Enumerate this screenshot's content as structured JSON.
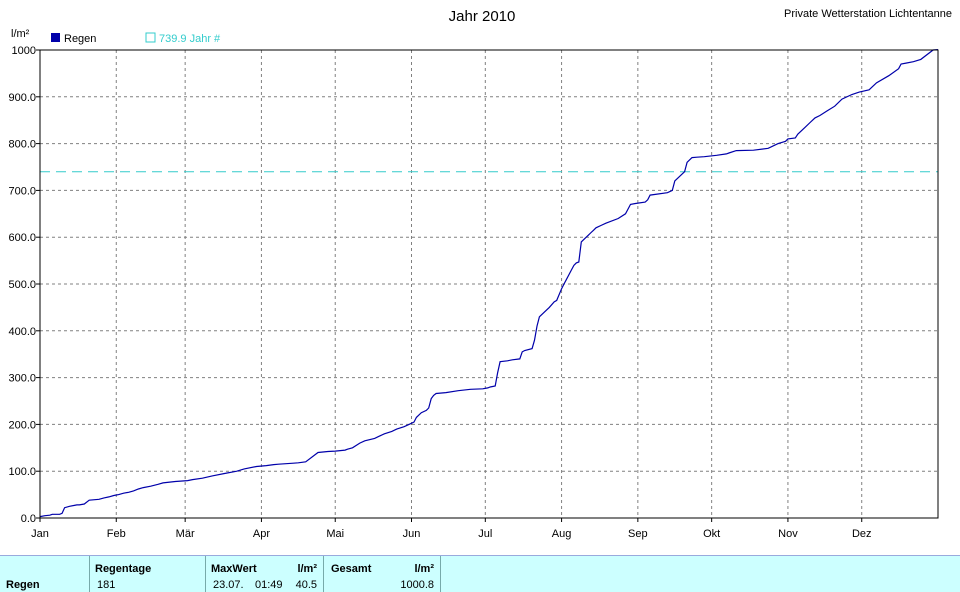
{
  "header": {
    "title": "Jahr 2010",
    "station": "Private Wetterstation Lichtentanne"
  },
  "colors": {
    "series": "#0000aa",
    "reference": "#33cccc",
    "grid": "#808080",
    "stats_bg": "#ccffff"
  },
  "chart_data": {
    "type": "line",
    "title": "Jahr 2010",
    "ylabel": "l/m²",
    "ylim": [
      0,
      1000
    ],
    "yticks": [
      "0.0",
      "100.0",
      "200.0",
      "300.0",
      "400.0",
      "500.0",
      "600.0",
      "700.0",
      "800.0",
      "900.0",
      "1000"
    ],
    "xticks": [
      "Jan",
      "Feb",
      "Mär",
      "Apr",
      "Mai",
      "Jun",
      "Jul",
      "Aug",
      "Sep",
      "Okt",
      "Nov",
      "Dez"
    ],
    "legend": [
      {
        "label": "Regen",
        "swatch": "filled"
      },
      {
        "label": "739.9 Jahr #",
        "swatch": "outline"
      }
    ],
    "reference_line": 739.9,
    "series": [
      {
        "name": "Regen",
        "x_day": [
          0,
          2,
          4,
          5,
          6,
          8,
          9,
          10,
          12,
          14,
          15,
          16,
          18,
          20,
          24,
          26,
          28,
          30,
          32,
          34,
          36,
          38,
          40,
          42,
          45,
          48,
          50,
          55,
          60,
          62,
          66,
          70,
          75,
          80,
          83,
          88,
          92,
          95,
          97,
          100,
          103,
          105,
          108,
          113,
          117,
          120,
          122,
          124,
          125,
          127,
          130,
          132,
          136,
          138,
          140,
          143,
          145,
          148,
          150,
          152,
          153,
          155,
          157,
          158,
          159,
          160,
          161,
          165,
          170,
          175,
          180,
          182,
          183,
          185,
          186,
          187,
          190,
          192,
          195,
          196,
          197,
          200,
          201,
          202,
          203,
          205,
          207,
          209,
          210,
          212,
          213,
          214,
          216,
          217,
          218,
          219,
          220,
          222,
          223,
          224,
          225,
          226,
          228,
          230,
          235,
          238,
          239,
          240,
          242,
          246,
          247,
          248,
          255,
          257,
          258,
          262,
          263,
          265,
          267,
          270,
          275,
          279,
          280,
          283,
          290,
          296,
          300,
          303,
          304,
          307,
          308,
          310,
          313,
          315,
          317,
          320,
          323,
          326,
          330,
          333,
          337,
          340,
          345,
          349,
          350,
          352,
          355,
          358,
          363,
          365
        ],
        "values": [
          3,
          5,
          6,
          8,
          8,
          8,
          10,
          22,
          25,
          27,
          28,
          28,
          30,
          38,
          40,
          43,
          45,
          48,
          50,
          53,
          55,
          58,
          62,
          65,
          68,
          72,
          75,
          78,
          80,
          82,
          85,
          90,
          95,
          100,
          105,
          110,
          112,
          114,
          115,
          116,
          117,
          118,
          120,
          140,
          142,
          143,
          144,
          145,
          147,
          150,
          160,
          165,
          170,
          175,
          180,
          185,
          190,
          195,
          200,
          205,
          215,
          225,
          230,
          235,
          255,
          262,
          266,
          268,
          272,
          275,
          276,
          278,
          280,
          282,
          310,
          334,
          336,
          338,
          340,
          355,
          358,
          362,
          380,
          410,
          430,
          440,
          450,
          462,
          465,
          490,
          500,
          510,
          530,
          540,
          545,
          547,
          590,
          600,
          605,
          610,
          615,
          620,
          625,
          630,
          640,
          650,
          660,
          670,
          672,
          675,
          680,
          690,
          695,
          700,
          720,
          740,
          760,
          770,
          771,
          772,
          775,
          778,
          780,
          785,
          786,
          790,
          800,
          805,
          810,
          812,
          820,
          830,
          845,
          855,
          860,
          870,
          880,
          895,
          905,
          910,
          915,
          930,
          945,
          960,
          970,
          972,
          975,
          980,
          1000,
          1000.8
        ]
      }
    ]
  },
  "stats": {
    "headers": {
      "regentage": "Regentage",
      "maxwert": "MaxWert",
      "unit1": "l/m²",
      "gesamt": "Gesamt",
      "unit2": "l/m²"
    },
    "row_label": "Regen",
    "regentage": "181",
    "max_date": "23.07.",
    "max_time": "01:49",
    "max_value": "40.5",
    "gesamt": "1000.8"
  }
}
